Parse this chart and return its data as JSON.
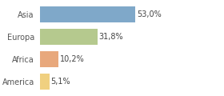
{
  "categories": [
    "Asia",
    "Europa",
    "Africa",
    "America"
  ],
  "values": [
    53.0,
    31.8,
    10.2,
    5.1
  ],
  "labels": [
    "53,0%",
    "31,8%",
    "10,2%",
    "5,1%"
  ],
  "bar_colors": [
    "#7fa8c9",
    "#b5c98e",
    "#e8a87c",
    "#f0d080"
  ],
  "xlim": [
    0,
    100
  ],
  "background_color": "#ffffff",
  "bar_height": 0.72,
  "label_fontsize": 7.0,
  "tick_fontsize": 7.0,
  "figwidth": 2.8,
  "figheight": 1.2,
  "dpi": 100
}
